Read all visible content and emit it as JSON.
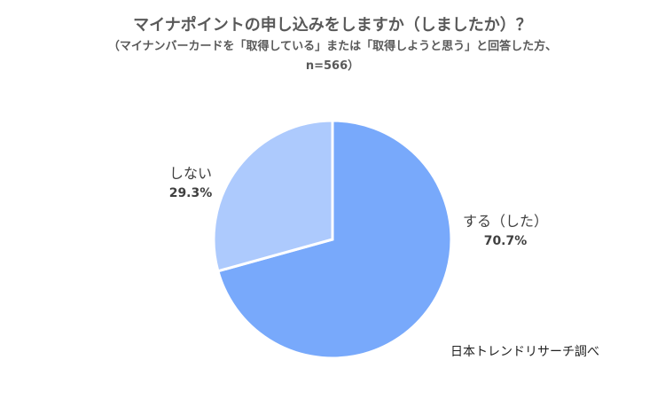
{
  "title": "マイナポイントの申し込みをしますか（しましたか）？",
  "subtitle_line1": "（マイナンバーカードを「取得している」または「取得しようと思う」と回答した方、",
  "subtitle_line2": "n=566）",
  "source": "日本トレンドリサーチ調べ",
  "chart_data": {
    "type": "pie",
    "title": "マイナポイントの申し込みをしますか（しましたか）？",
    "slices": [
      {
        "label": "する（した）",
        "value": 70.7,
        "value_label": "70.7%",
        "color": "#78a9fb"
      },
      {
        "label": "しない",
        "value": 29.3,
        "value_label": "29.3%",
        "color": "#adcafd"
      }
    ],
    "start_angle": "12 o'clock",
    "direction": "clockwise",
    "legend": "none"
  }
}
